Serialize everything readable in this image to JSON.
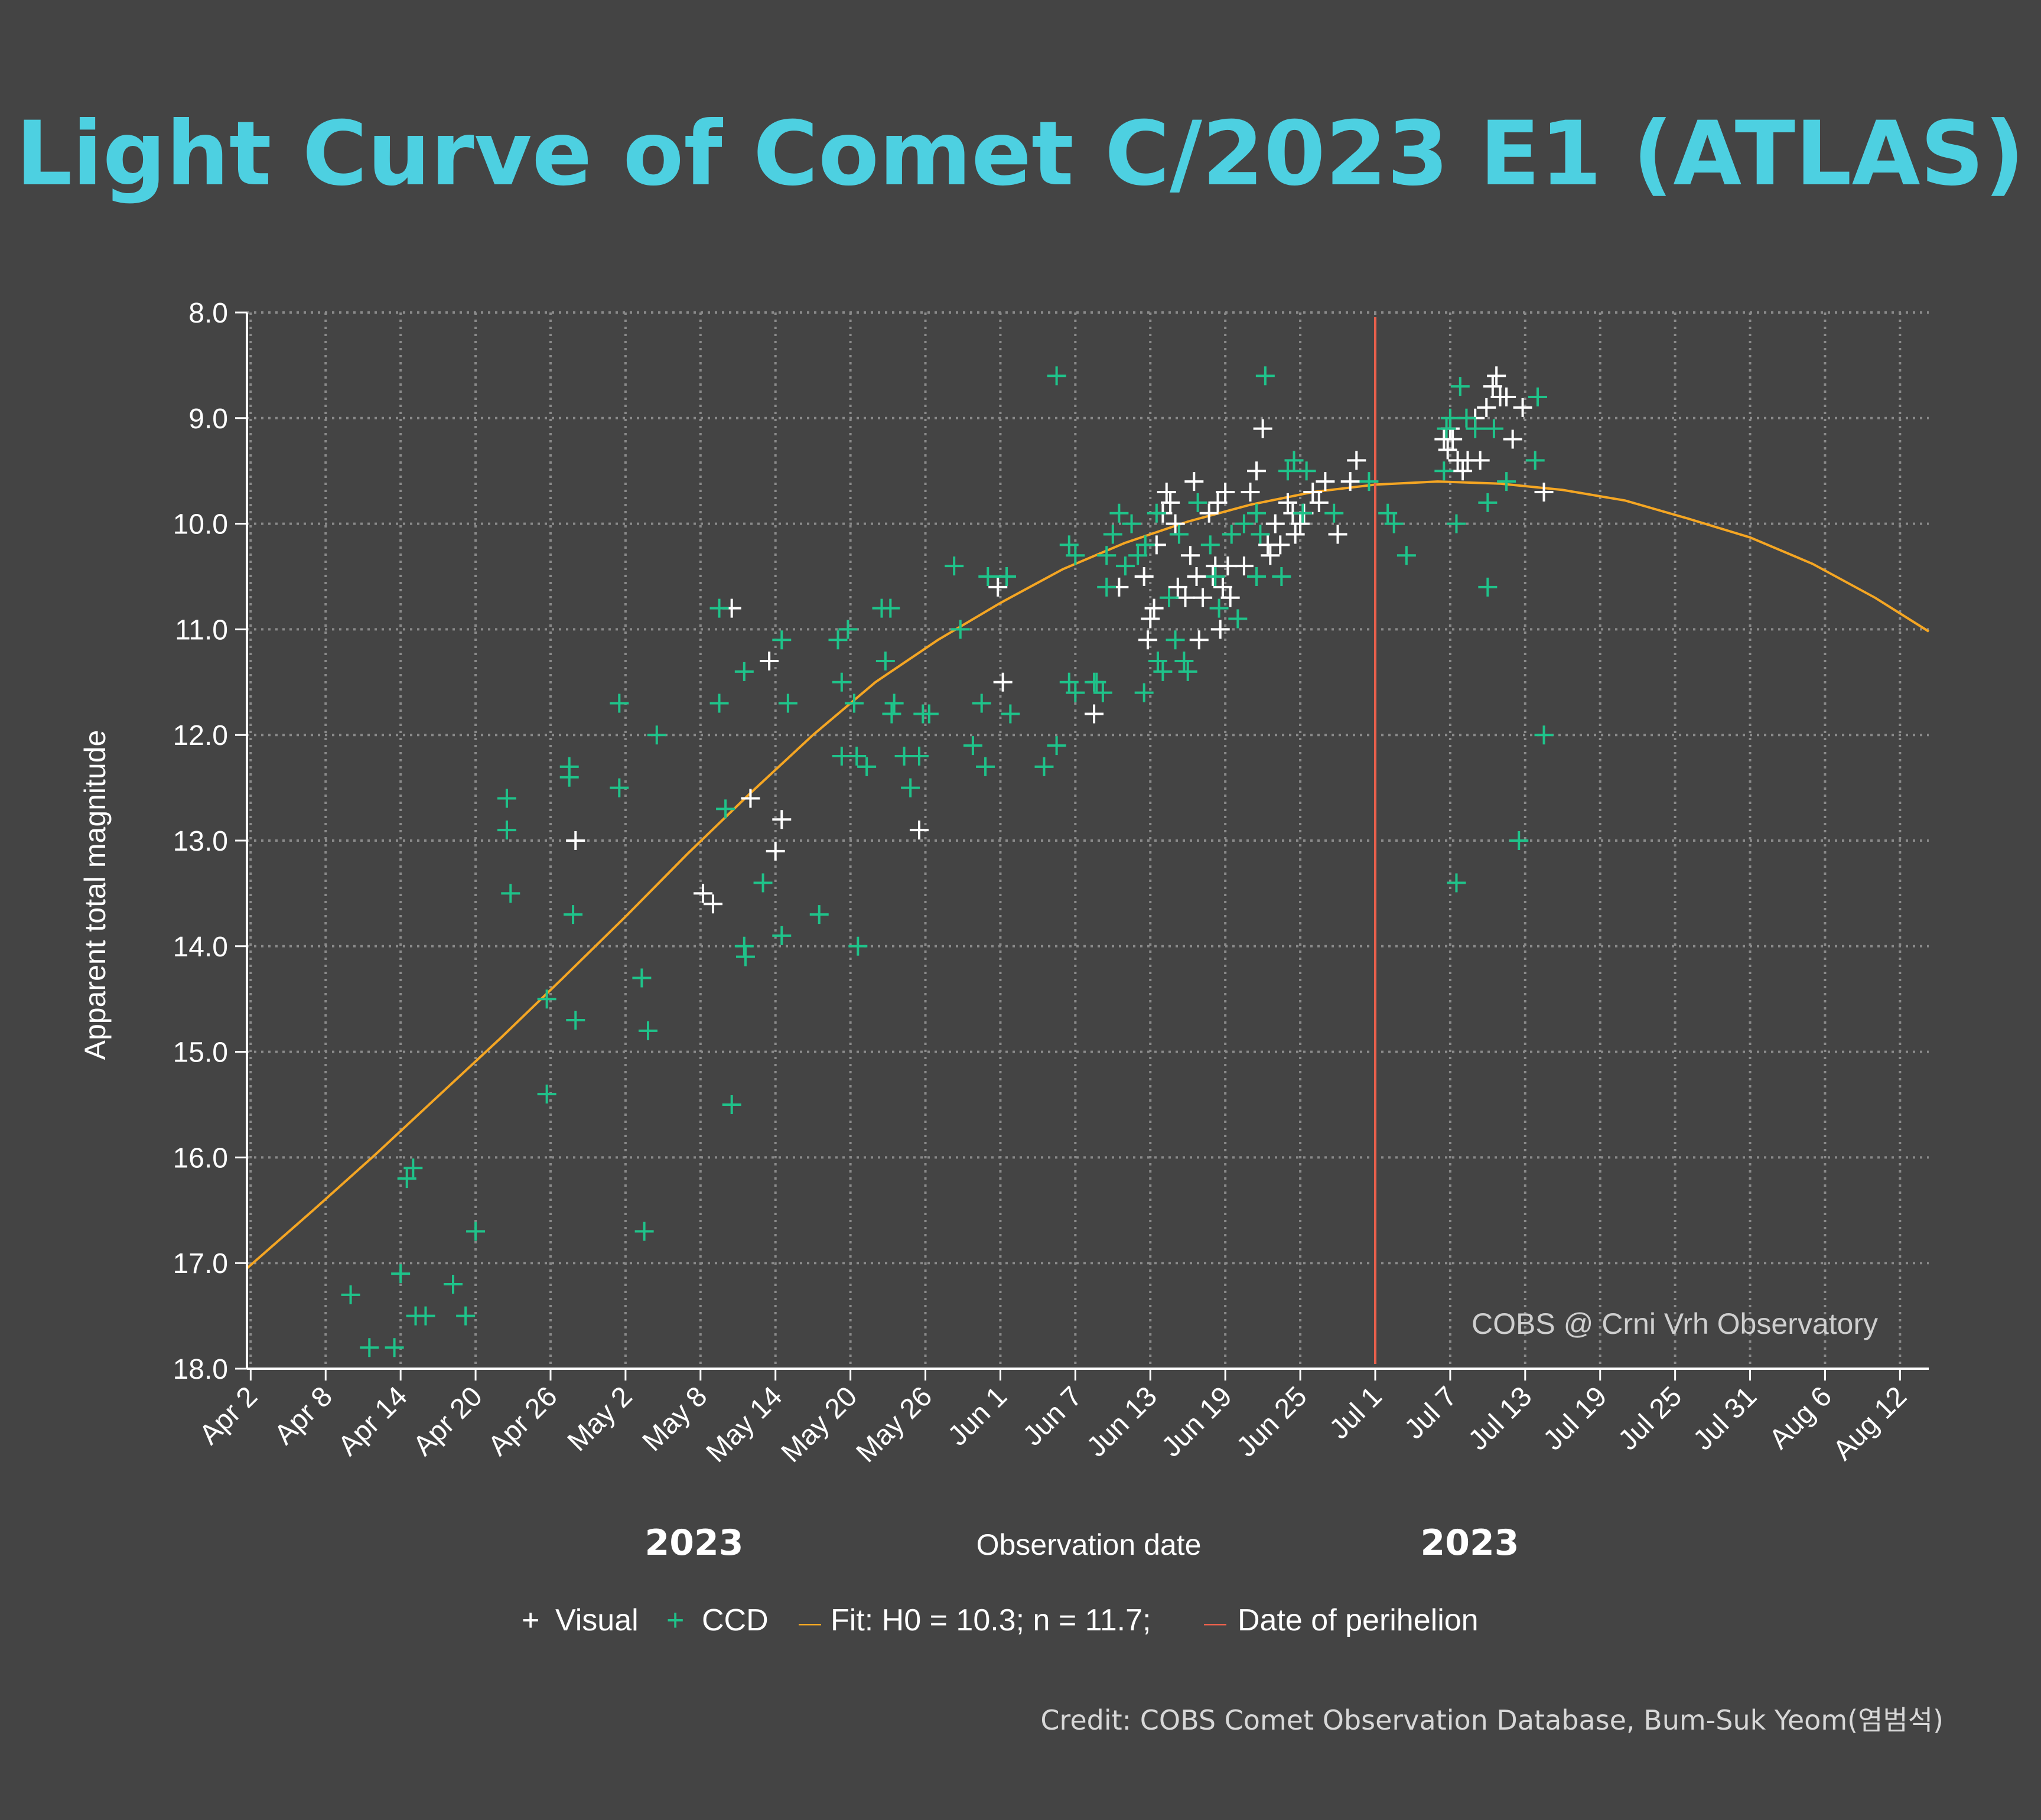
{
  "colors": {
    "background": "#444444",
    "title": "#4dd0e1",
    "visual": "#ffffff",
    "ccd": "#1fc38a",
    "fit": "#f5a623",
    "perihelion": "#e8604c",
    "grid": "#8a8a8a",
    "axis": "#ffffff",
    "text": "#ffffff",
    "watermark": "#cfcfcf",
    "credit": "#d8d8d8"
  },
  "chart_data": {
    "type": "scatter",
    "title": "Light Curve of Comet C/2023 E1 (ATLAS)",
    "xlabel": "Observation date",
    "ylabel": "Apparent total magnitude",
    "year_labels": [
      "2023",
      "2023"
    ],
    "x_unit": "days since 2023-04-02",
    "xlim": [
      -0.3,
      134.3
    ],
    "ylim": [
      18.0,
      8.0
    ],
    "y_inverted": true,
    "grid": true,
    "x_ticks": [
      {
        "x": 0,
        "label": "Apr 2"
      },
      {
        "x": 6,
        "label": "Apr 8"
      },
      {
        "x": 12,
        "label": "Apr 14"
      },
      {
        "x": 18,
        "label": "Apr 20"
      },
      {
        "x": 24,
        "label": "Apr 26"
      },
      {
        "x": 30,
        "label": "May 2"
      },
      {
        "x": 36,
        "label": "May 8"
      },
      {
        "x": 42,
        "label": "May 14"
      },
      {
        "x": 48,
        "label": "May 20"
      },
      {
        "x": 54,
        "label": "May 26"
      },
      {
        "x": 60,
        "label": "Jun 1"
      },
      {
        "x": 66,
        "label": "Jun 7"
      },
      {
        "x": 72,
        "label": "Jun 13"
      },
      {
        "x": 78,
        "label": "Jun 19"
      },
      {
        "x": 84,
        "label": "Jun 25"
      },
      {
        "x": 90,
        "label": "Jul 1"
      },
      {
        "x": 96,
        "label": "Jul 7"
      },
      {
        "x": 102,
        "label": "Jul 13"
      },
      {
        "x": 108,
        "label": "Jul 19"
      },
      {
        "x": 114,
        "label": "Jul 25"
      },
      {
        "x": 120,
        "label": "Jul 31"
      },
      {
        "x": 126,
        "label": "Aug 6"
      },
      {
        "x": 132,
        "label": "Aug 12"
      }
    ],
    "y_ticks": [
      {
        "y": 8,
        "label": "8.0"
      },
      {
        "y": 9,
        "label": "9.0"
      },
      {
        "y": 10,
        "label": "10.0"
      },
      {
        "y": 11,
        "label": "11.0"
      },
      {
        "y": 12,
        "label": "12.0"
      },
      {
        "y": 13,
        "label": "13.0"
      },
      {
        "y": 14,
        "label": "14.0"
      },
      {
        "y": 15,
        "label": "15.0"
      },
      {
        "y": 16,
        "label": "16.0"
      },
      {
        "y": 17,
        "label": "17.0"
      },
      {
        "y": 18,
        "label": "18.0"
      }
    ],
    "series": [
      {
        "name": "Visual",
        "marker": "+",
        "points": [
          [
            26,
            13.0
          ],
          [
            38.5,
            10.8
          ],
          [
            41.5,
            11.3
          ],
          [
            40,
            12.6
          ],
          [
            36.2,
            13.5
          ],
          [
            37,
            13.6
          ],
          [
            42,
            13.1
          ],
          [
            42.5,
            12.8
          ],
          [
            53.5,
            12.9
          ],
          [
            59.8,
            10.6
          ],
          [
            60.2,
            11.5
          ],
          [
            67.5,
            11.8
          ],
          [
            69.5,
            10.6
          ],
          [
            71.5,
            10.5
          ],
          [
            71.8,
            11.1
          ],
          [
            72,
            10.9
          ],
          [
            72.3,
            10.8
          ],
          [
            72.5,
            10.2
          ],
          [
            73,
            9.9
          ],
          [
            73.3,
            9.7
          ],
          [
            73.6,
            9.8
          ],
          [
            74,
            10.0
          ],
          [
            74.2,
            10.6
          ],
          [
            74.8,
            10.7
          ],
          [
            75.2,
            10.3
          ],
          [
            75.5,
            9.6
          ],
          [
            75.7,
            10.5
          ],
          [
            75.9,
            11.1
          ],
          [
            76.2,
            10.7
          ],
          [
            76.7,
            9.9
          ],
          [
            77,
            10.5
          ],
          [
            77.2,
            10.4
          ],
          [
            77.4,
            9.8
          ],
          [
            77.6,
            11.0
          ],
          [
            77.8,
            10.6
          ],
          [
            78,
            9.7
          ],
          [
            78.2,
            10.4
          ],
          [
            78.4,
            10.7
          ],
          [
            79.5,
            10.4
          ],
          [
            80,
            9.7
          ],
          [
            80.5,
            9.5
          ],
          [
            81,
            9.1
          ],
          [
            81.4,
            10.2
          ],
          [
            81.6,
            10.3
          ],
          [
            82,
            10.0
          ],
          [
            82.4,
            10.2
          ],
          [
            83,
            9.8
          ],
          [
            83.4,
            9.9
          ],
          [
            83.6,
            10.1
          ],
          [
            84,
            10.0
          ],
          [
            84.3,
            9.9
          ],
          [
            85,
            9.7
          ],
          [
            85.5,
            9.8
          ],
          [
            86,
            9.6
          ],
          [
            87,
            10.1
          ],
          [
            88,
            9.6
          ],
          [
            88.5,
            9.4
          ],
          [
            95.5,
            9.2
          ],
          [
            95.8,
            9.3
          ],
          [
            96,
            9.1
          ],
          [
            96.2,
            9.2
          ],
          [
            96.6,
            9.4
          ],
          [
            97,
            9.5
          ],
          [
            97.4,
            9.4
          ],
          [
            98,
            9.0
          ],
          [
            98.4,
            9.4
          ],
          [
            98.9,
            8.9
          ],
          [
            99.4,
            8.7
          ],
          [
            99.7,
            8.6
          ],
          [
            100,
            8.8
          ],
          [
            100.5,
            8.8
          ],
          [
            101,
            9.2
          ],
          [
            101.8,
            8.9
          ],
          [
            103.5,
            9.7
          ]
        ]
      },
      {
        "name": "CCD",
        "marker": "+",
        "points": [
          [
            8,
            17.3
          ],
          [
            9.5,
            17.8
          ],
          [
            11.5,
            17.8
          ],
          [
            12,
            17.1
          ],
          [
            12.5,
            16.2
          ],
          [
            13,
            16.1
          ],
          [
            13.2,
            17.5
          ],
          [
            14,
            17.5
          ],
          [
            16.2,
            17.2
          ],
          [
            17.2,
            17.5
          ],
          [
            18,
            16.7
          ],
          [
            20.5,
            12.6
          ],
          [
            20.5,
            12.9
          ],
          [
            20.8,
            13.5
          ],
          [
            23.7,
            14.5
          ],
          [
            23.7,
            15.4
          ],
          [
            25.5,
            12.3
          ],
          [
            25.5,
            12.4
          ],
          [
            25.8,
            13.7
          ],
          [
            26,
            14.7
          ],
          [
            29.5,
            11.7
          ],
          [
            29.5,
            12.5
          ],
          [
            31.3,
            14.3
          ],
          [
            31.8,
            14.8
          ],
          [
            31.5,
            16.7
          ],
          [
            32.5,
            12.0
          ],
          [
            37.5,
            10.8
          ],
          [
            37.5,
            11.7
          ],
          [
            38,
            12.7
          ],
          [
            38.5,
            15.5
          ],
          [
            39.5,
            11.4
          ],
          [
            39.5,
            14.0
          ],
          [
            39.6,
            14.1
          ],
          [
            41,
            13.4
          ],
          [
            42.5,
            11.1
          ],
          [
            42.5,
            13.9
          ],
          [
            43,
            11.7
          ],
          [
            45.5,
            13.7
          ],
          [
            47,
            11.1
          ],
          [
            47.3,
            11.5
          ],
          [
            47.3,
            12.2
          ],
          [
            47.8,
            11.0
          ],
          [
            48.3,
            11.7
          ],
          [
            48.5,
            12.2
          ],
          [
            48.6,
            14.0
          ],
          [
            49.3,
            12.3
          ],
          [
            50.5,
            10.8
          ],
          [
            50.8,
            11.3
          ],
          [
            51.2,
            10.8
          ],
          [
            51.3,
            11.8
          ],
          [
            51.5,
            11.7
          ],
          [
            52.3,
            12.2
          ],
          [
            52.8,
            12.5
          ],
          [
            53.5,
            12.2
          ],
          [
            53.8,
            11.8
          ],
          [
            54.3,
            11.8
          ],
          [
            56.3,
            10.4
          ],
          [
            56.8,
            11.0
          ],
          [
            57.8,
            12.1
          ],
          [
            58.8,
            12.3
          ],
          [
            58.5,
            11.7
          ],
          [
            59,
            10.5
          ],
          [
            60.5,
            10.5
          ],
          [
            60.8,
            11.8
          ],
          [
            63.5,
            12.3
          ],
          [
            64.5,
            12.1
          ],
          [
            64.5,
            8.6
          ],
          [
            65.5,
            11.5
          ],
          [
            65.5,
            10.2
          ],
          [
            66,
            10.3
          ],
          [
            66,
            11.6
          ],
          [
            67.5,
            11.5
          ],
          [
            67.7,
            11.5
          ],
          [
            68.2,
            11.6
          ],
          [
            68.5,
            10.3
          ],
          [
            68.5,
            10.6
          ],
          [
            69,
            10.1
          ],
          [
            69.5,
            9.9
          ],
          [
            70,
            10.4
          ],
          [
            70.5,
            10.0
          ],
          [
            71,
            10.3
          ],
          [
            71.5,
            11.6
          ],
          [
            71.6,
            10.2
          ],
          [
            72.5,
            9.9
          ],
          [
            72.6,
            11.3
          ],
          [
            73,
            11.4
          ],
          [
            73.5,
            10.7
          ],
          [
            74,
            11.1
          ],
          [
            74.3,
            10.1
          ],
          [
            74.7,
            11.3
          ],
          [
            75,
            11.4
          ],
          [
            75.8,
            9.8
          ],
          [
            76.8,
            10.2
          ],
          [
            77.2,
            10.5
          ],
          [
            77.5,
            10.8
          ],
          [
            78.5,
            10.1
          ],
          [
            79,
            10.9
          ],
          [
            79.5,
            10.0
          ],
          [
            80.5,
            10.5
          ],
          [
            80.5,
            9.9
          ],
          [
            80.8,
            10.1
          ],
          [
            81.2,
            8.6
          ],
          [
            82.5,
            10.5
          ],
          [
            83,
            9.5
          ],
          [
            83.5,
            9.4
          ],
          [
            84.2,
            9.9
          ],
          [
            84.5,
            9.5
          ],
          [
            86.7,
            9.9
          ],
          [
            89.5,
            9.6
          ],
          [
            91,
            9.9
          ],
          [
            91.5,
            10.0
          ],
          [
            92.5,
            10.3
          ],
          [
            95.5,
            9.5
          ],
          [
            95.7,
            9.1
          ],
          [
            96,
            9.0
          ],
          [
            96.5,
            10.0
          ],
          [
            96.5,
            13.4
          ],
          [
            96.8,
            8.7
          ],
          [
            97.3,
            9.0
          ],
          [
            98,
            9.1
          ],
          [
            99,
            9.8
          ],
          [
            99,
            10.6
          ],
          [
            99.5,
            9.1
          ],
          [
            100.5,
            9.6
          ],
          [
            101.5,
            13.0
          ],
          [
            102.8,
            9.4
          ],
          [
            103,
            8.8
          ],
          [
            103.5,
            12.0
          ]
        ]
      }
    ],
    "fit": {
      "name": "Fit: H0 = 10.3; n = 11.7;",
      "type": "line",
      "points": [
        [
          -0.3,
          17.05
        ],
        [
          5,
          16.5
        ],
        [
          10,
          15.97
        ],
        [
          15,
          15.42
        ],
        [
          20,
          14.87
        ],
        [
          25,
          14.3
        ],
        [
          30,
          13.72
        ],
        [
          35,
          13.12
        ],
        [
          40,
          12.55
        ],
        [
          45,
          12.0
        ],
        [
          50,
          11.5
        ],
        [
          55,
          11.1
        ],
        [
          60,
          10.75
        ],
        [
          65,
          10.43
        ],
        [
          70,
          10.18
        ],
        [
          75,
          9.98
        ],
        [
          80,
          9.82
        ],
        [
          85,
          9.7
        ],
        [
          90,
          9.63
        ],
        [
          95,
          9.6
        ],
        [
          100,
          9.62
        ],
        [
          105,
          9.68
        ],
        [
          110,
          9.78
        ],
        [
          115,
          9.95
        ],
        [
          120,
          10.13
        ],
        [
          125,
          10.38
        ],
        [
          130,
          10.7
        ],
        [
          134.3,
          11.02
        ]
      ]
    },
    "perihelion": {
      "name": "Date of perihelion",
      "x": 90.0
    },
    "legend": {
      "position": "bottom-center",
      "entries": [
        {
          "symbol": "+",
          "label": "Visual"
        },
        {
          "symbol": "+",
          "label": "CCD"
        },
        {
          "symbol": "—",
          "label": "Fit: H0 = 10.3; n = 11.7;"
        },
        {
          "symbol": "—",
          "label": "Date of perihelion"
        }
      ]
    },
    "annotation": "COBS @ Crni Vrh Observatory"
  },
  "credit": "Credit: COBS Comet Observation Database, Bum-Suk Yeom(염범석)"
}
